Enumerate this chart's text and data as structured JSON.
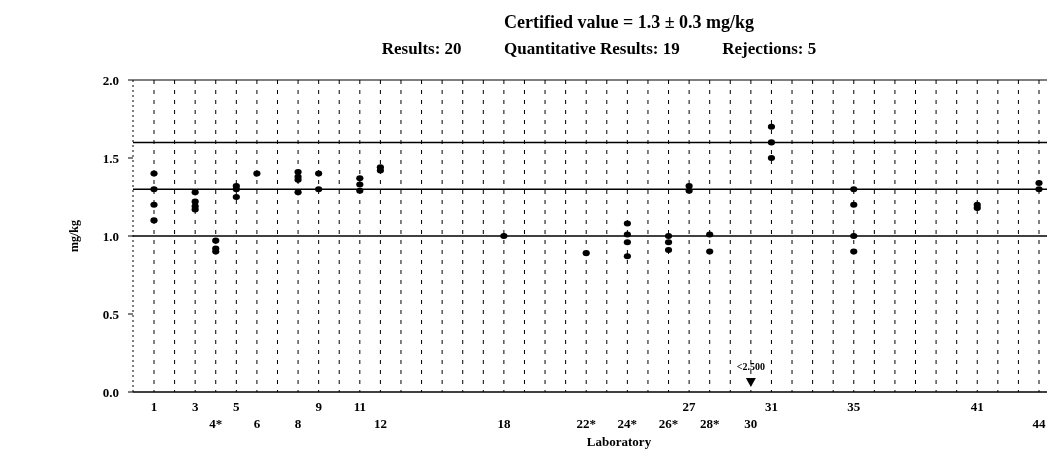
{
  "chart_data": {
    "type": "scatter",
    "title": "Certified value = 1.3 ± 0.3 mg/kg",
    "xlabel": "Laboratory",
    "ylabel": "mg/kg",
    "categories": [
      "1",
      null,
      "3",
      "4*",
      "5",
      "6",
      null,
      "8",
      "9",
      null,
      "11",
      "12",
      null,
      null,
      null,
      null,
      null,
      "18",
      null,
      null,
      null,
      "22*",
      null,
      "24*",
      null,
      "26*",
      "27",
      "28*",
      null,
      "30",
      "31",
      null,
      null,
      null,
      "35",
      null,
      null,
      null,
      null,
      null,
      "41",
      null,
      null,
      "44"
    ],
    "series": [
      {
        "color": "#000000",
        "x": [
          "1",
          "1",
          "1",
          "1",
          "3",
          "3",
          "3",
          "3",
          "4*",
          "4*",
          "4*",
          "5",
          "5",
          "5",
          "6",
          "8",
          "8",
          "8",
          "8",
          "9",
          "9",
          "11",
          "11",
          "11",
          "12",
          "12",
          "18",
          "22*",
          "24*",
          "24*",
          "24*",
          "24*",
          "26*",
          "26*",
          "26*",
          "27",
          "27",
          "28*",
          "28*",
          "31",
          "31",
          "31",
          "35",
          "35",
          "35",
          "35",
          "41",
          "41",
          "44",
          "44"
        ],
        "values": [
          1.4,
          1.3,
          1.2,
          1.1,
          1.28,
          1.22,
          1.19,
          1.17,
          0.97,
          0.92,
          0.9,
          1.32,
          1.3,
          1.25,
          1.4,
          1.41,
          1.38,
          1.36,
          1.28,
          1.4,
          1.3,
          1.37,
          1.33,
          1.29,
          1.44,
          1.42,
          1.0,
          0.89,
          1.08,
          1.01,
          0.96,
          0.87,
          1.0,
          0.96,
          0.91,
          1.32,
          1.29,
          1.01,
          0.9,
          1.7,
          1.6,
          1.5,
          1.3,
          1.2,
          1.0,
          0.9,
          1.2,
          1.18,
          1.34,
          1.3
        ]
      }
    ],
    "ylim": [
      0,
      2
    ],
    "yticks": [
      {
        "value": 0,
        "label": "0.0"
      },
      {
        "value": 0.5,
        "label": "0.5"
      },
      {
        "value": 1,
        "label": "1.0"
      },
      {
        "value": 1.5,
        "label": "1.5"
      },
      {
        "value": 2,
        "label": "2.0"
      }
    ],
    "ref_lines": [
      {
        "axis": "y",
        "value": 1.0
      },
      {
        "axis": "y",
        "value": 1.3
      },
      {
        "axis": "y",
        "value": 1.6
      }
    ],
    "subtitle": "Results: 20          Quantitative Results: 19          Rejections: 5",
    "annotations": [
      "<2.500"
    ],
    "grid": "x",
    "marker": "circle"
  }
}
